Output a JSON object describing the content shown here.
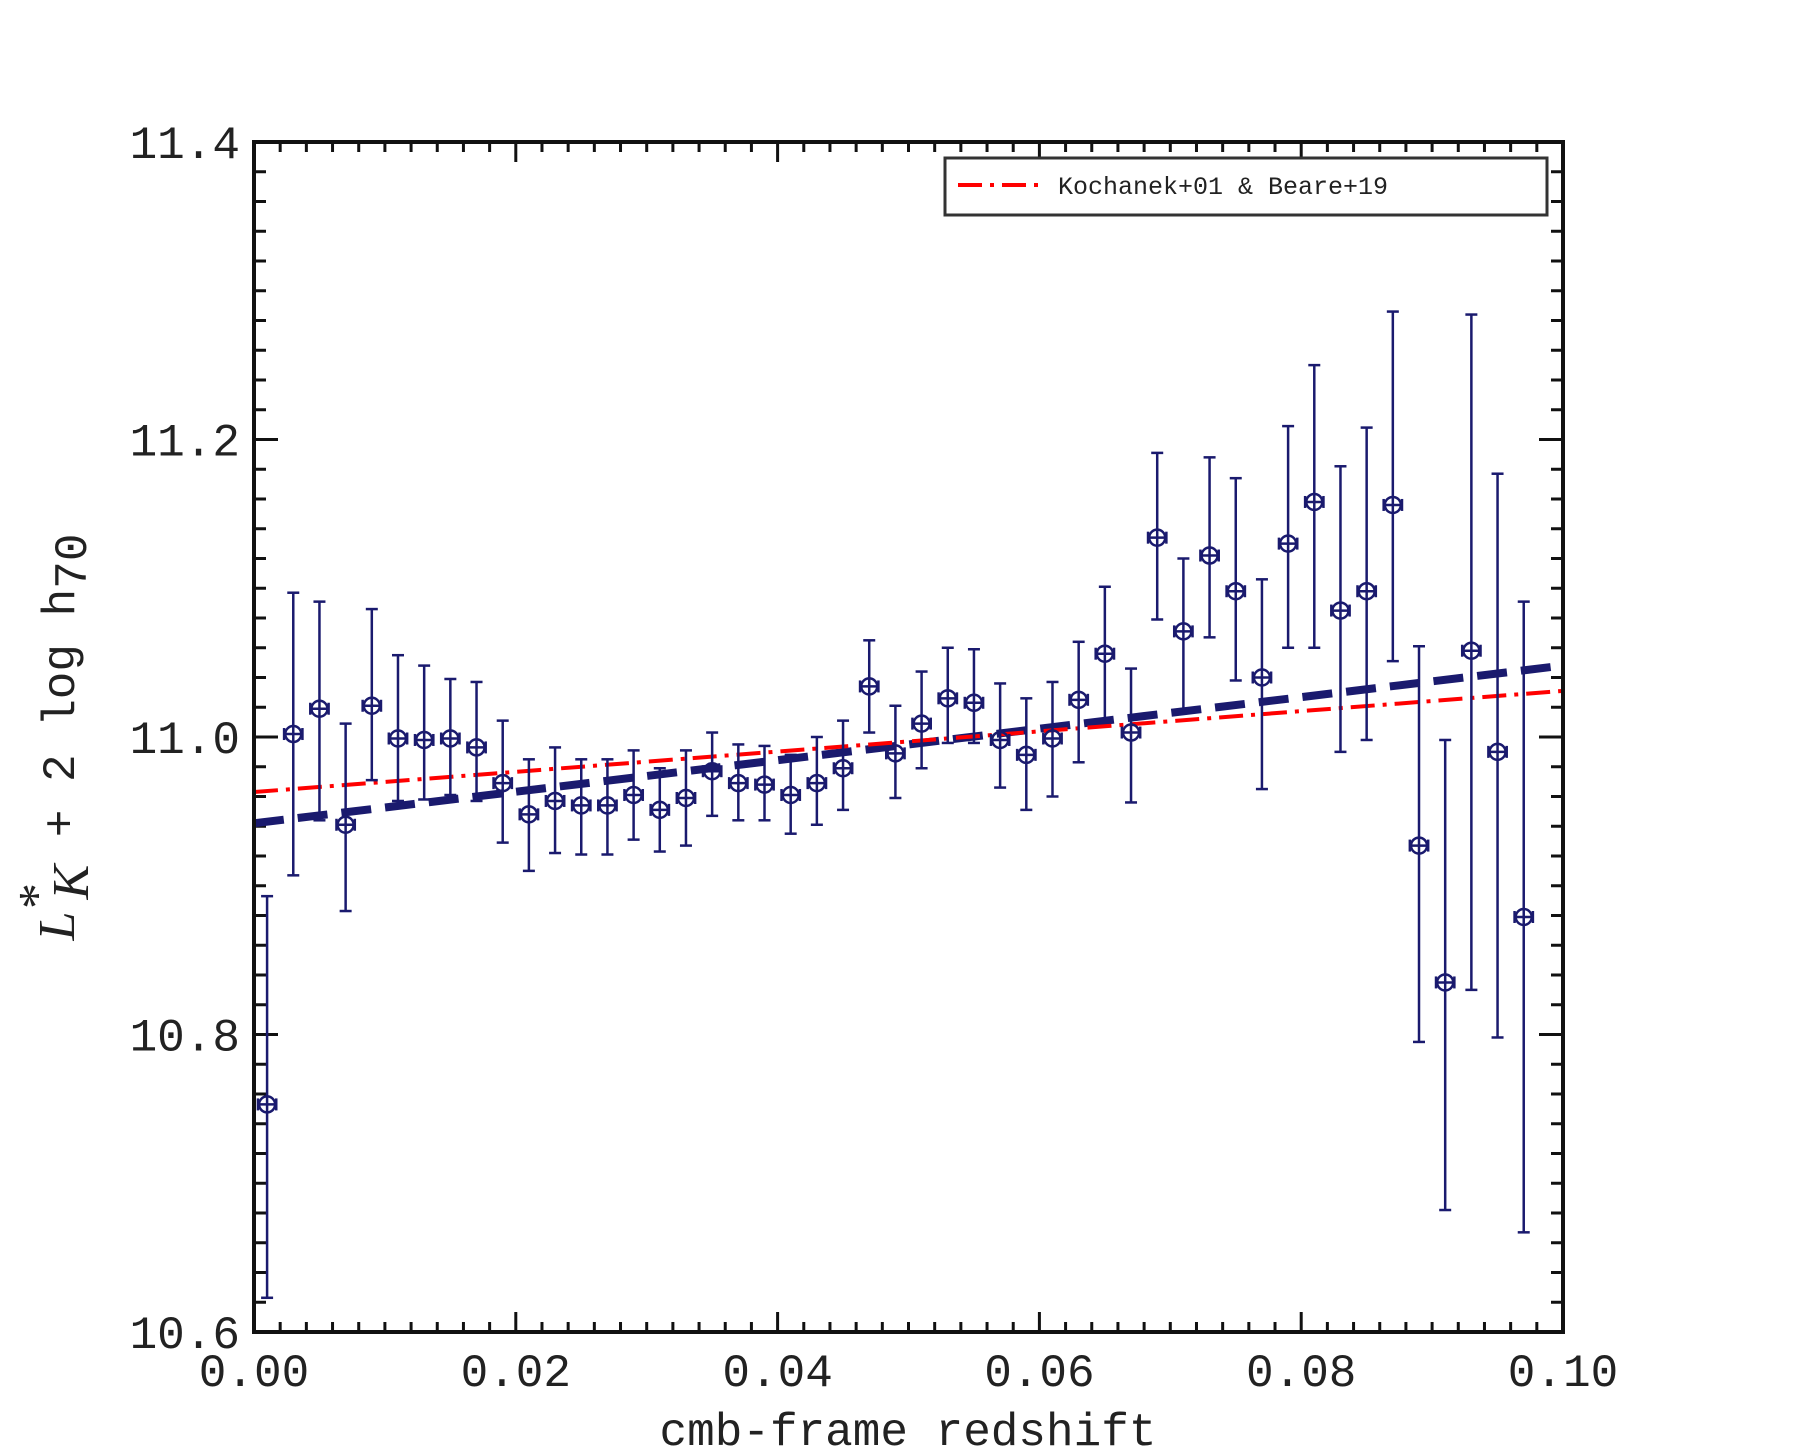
{
  "chart_data": {
    "type": "scatter",
    "xlabel": "cmb-frame redshift",
    "ylabel": {
      "symbol": "L",
      "superscript": "*",
      "subscript": "K",
      "rest": " + 2 log h",
      "rest_subscript": "70"
    },
    "xlim": [
      0.0,
      0.1
    ],
    "ylim": [
      10.6,
      11.4
    ],
    "xticks": [
      "0.00",
      "0.02",
      "0.04",
      "0.06",
      "0.08",
      "0.10"
    ],
    "yticks": [
      "10.6",
      "10.8",
      "11.0",
      "11.2",
      "11.4"
    ],
    "grid": false,
    "legend": {
      "placement": "top-right",
      "entries": [
        "Kochanek+01 & Beare+19"
      ]
    },
    "colors": {
      "points": "#1a1a6e",
      "fit_line": "#1a1a6e",
      "reference_line": "#ff0000",
      "frame": "#111111"
    },
    "series": [
      {
        "kind": "errorbar",
        "x": [
          0.001,
          0.003,
          0.005,
          0.007,
          0.009,
          0.011,
          0.013,
          0.015,
          0.017,
          0.019,
          0.021,
          0.023,
          0.025,
          0.027,
          0.029,
          0.031,
          0.033,
          0.035,
          0.037,
          0.039,
          0.041,
          0.043,
          0.045,
          0.047,
          0.049,
          0.051,
          0.053,
          0.055,
          0.057,
          0.059,
          0.061,
          0.063,
          0.065,
          0.067,
          0.069,
          0.071,
          0.073,
          0.075,
          0.077,
          0.079,
          0.081,
          0.083,
          0.085,
          0.087,
          0.089,
          0.091,
          0.093,
          0.095,
          0.097
        ],
        "y": [
          10.753,
          11.002,
          11.019,
          10.941,
          11.021,
          10.999,
          10.998,
          10.999,
          10.993,
          10.969,
          10.948,
          10.957,
          10.954,
          10.954,
          10.961,
          10.951,
          10.959,
          10.977,
          10.969,
          10.968,
          10.961,
          10.969,
          10.979,
          11.034,
          10.989,
          11.009,
          11.026,
          11.023,
          10.998,
          10.988,
          10.999,
          11.025,
          11.056,
          11.003,
          11.134,
          11.071,
          11.122,
          11.098,
          11.04,
          11.13,
          11.158,
          11.085,
          11.098,
          11.156,
          10.927,
          10.835,
          11.058,
          10.99,
          10.879
        ],
        "yerr_low": [
          0.13,
          0.095,
          0.075,
          0.058,
          0.05,
          0.042,
          0.04,
          0.038,
          0.036,
          0.04,
          0.038,
          0.035,
          0.033,
          0.033,
          0.03,
          0.028,
          0.032,
          0.03,
          0.025,
          0.024,
          0.026,
          0.028,
          0.028,
          0.031,
          0.03,
          0.03,
          0.03,
          0.027,
          0.032,
          0.037,
          0.039,
          0.042,
          0.045,
          0.047,
          0.055,
          0.055,
          0.055,
          0.06,
          0.075,
          0.07,
          0.098,
          0.095,
          0.1,
          0.105,
          0.132,
          0.153,
          0.228,
          0.192,
          0.212
        ],
        "yerr_high": [
          0.14,
          0.095,
          0.072,
          0.068,
          0.065,
          0.056,
          0.05,
          0.04,
          0.044,
          0.042,
          0.037,
          0.036,
          0.031,
          0.031,
          0.03,
          0.028,
          0.032,
          0.026,
          0.026,
          0.026,
          0.027,
          0.031,
          0.032,
          0.031,
          0.032,
          0.035,
          0.034,
          0.036,
          0.038,
          0.038,
          0.038,
          0.039,
          0.045,
          0.043,
          0.057,
          0.049,
          0.066,
          0.076,
          0.066,
          0.079,
          0.092,
          0.097,
          0.11,
          0.13,
          0.134,
          0.163,
          0.226,
          0.187,
          0.212
        ],
        "xerr": 0.0007
      },
      {
        "kind": "line",
        "style": "dashed",
        "x": [
          0.0,
          0.1
        ],
        "y": [
          10.942,
          11.048
        ]
      },
      {
        "kind": "line",
        "style": "dash-dot",
        "name": "Kochanek+01 & Beare+19",
        "x": [
          0.0,
          0.1
        ],
        "y": [
          10.963,
          11.031
        ]
      }
    ]
  }
}
